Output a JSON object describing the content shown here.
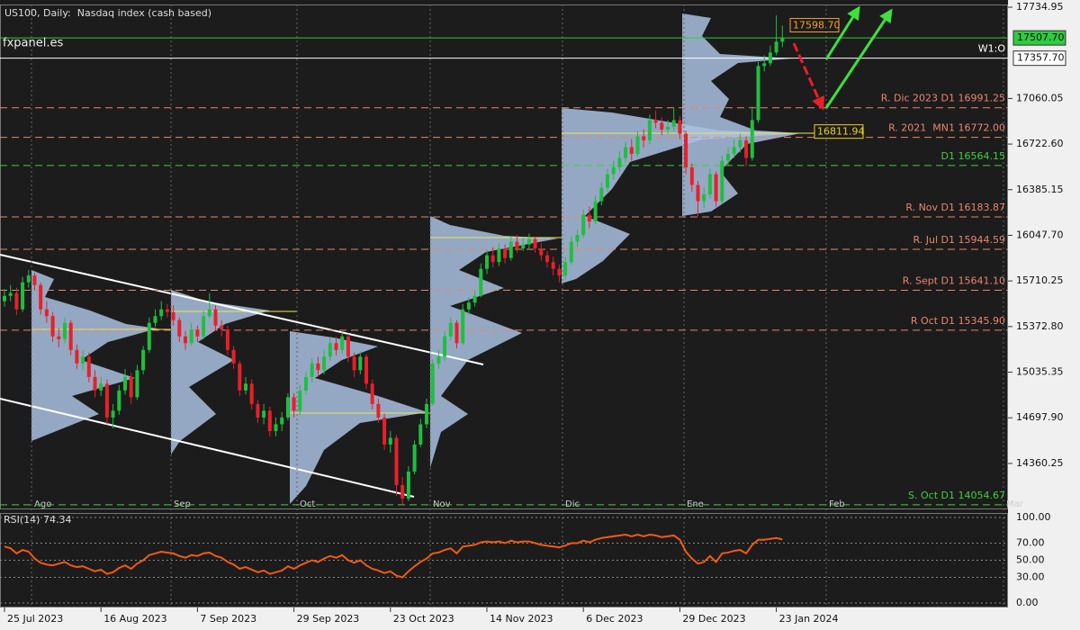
{
  "chart_data": {
    "type": "candlestick",
    "title": "US100, Daily:  Nasdaq index (cash based)",
    "watermark": "fxpanel.es",
    "up_color": "#1fbf3f",
    "down_color": "#e8202a",
    "ylim": [
      14027,
      17755
    ],
    "yticks": [
      17734.95,
      17060.05,
      {
        "value": 16722.6,
        "label": "16722.60"
      },
      16385.15,
      {
        "value": 16047.7,
        "label": "16047.70"
      },
      15710.25,
      {
        "value": 15372.8,
        "label": "15372.80"
      },
      15035.35,
      {
        "value": 14697.9,
        "label": "14697.90"
      },
      14360.25
    ],
    "xticks": [
      {
        "value": 0,
        "label": "25 Jul 2023"
      },
      {
        "value": 16,
        "label": "16 Aug 2023"
      },
      {
        "value": 32,
        "label": "7 Sep 2023"
      },
      {
        "value": 48,
        "label": "29 Sep 2023"
      },
      {
        "value": 64,
        "label": "23 Oct 2023"
      },
      {
        "value": 80,
        "label": "14 Nov 2023"
      },
      {
        "value": 96,
        "label": "6 Dec 2023"
      },
      {
        "value": 112,
        "label": "29 Dec 2023"
      },
      {
        "value": 128,
        "label": "23 Jan 2024"
      }
    ],
    "months": [
      "Ago",
      "Sep",
      "Oct",
      "Nov",
      "Dic",
      "Ene",
      "Feb",
      "Mar"
    ],
    "open": [
      15560,
      15600,
      15620,
      15500,
      15700,
      15750,
      15680,
      15500,
      15450,
      15300,
      15280,
      15400,
      15200,
      15100,
      15150,
      15000,
      14900,
      14950,
      14700,
      14750,
      14900,
      15000,
      14850,
      15050,
      15200,
      15400,
      15450,
      15500,
      15480,
      15420,
      15300,
      15250,
      15350,
      15300,
      15450,
      15500,
      15380,
      15350,
      15200,
      15100,
      14900,
      14950,
      14800,
      14700,
      14750,
      14600,
      14650,
      14700,
      14850,
      14750,
      14900,
      15000,
      15100,
      15050,
      15150,
      15250,
      15200,
      15300,
      15150,
      15050,
      15150,
      14950,
      14800,
      14700,
      14500,
      14550,
      14200,
      14100,
      14300,
      14500,
      14650,
      14800,
      15100,
      15150,
      15300,
      15400,
      15250,
      15500,
      15550,
      15600,
      15800,
      15900,
      15850,
      15950,
      15880,
      16000,
      15950,
      15980,
      16020,
      15950,
      15900,
      15850,
      15800,
      15750,
      15850,
      16000,
      16050,
      16200,
      16150,
      16300,
      16400,
      16500,
      16550,
      16620,
      16700,
      16650,
      16780,
      16750,
      16900,
      16880,
      16830,
      16850,
      16900,
      16800,
      16550,
      16420,
      16300,
      16350,
      16500,
      16300,
      16600,
      16650,
      16700,
      16750,
      16620,
      16900,
      17300,
      17320,
      17400,
      17480
    ],
    "high": [
      15650,
      15680,
      15660,
      15740,
      15790,
      15770,
      15700,
      15560,
      15480,
      15360,
      15440,
      15420,
      15240,
      15200,
      15180,
      15050,
      15000,
      14980,
      14800,
      14940,
      15060,
      15030,
      15090,
      15230,
      15440,
      15500,
      15560,
      15540,
      15530,
      15440,
      15340,
      15400,
      15380,
      15490,
      15620,
      15530,
      15420,
      15380,
      15230,
      15120,
      15000,
      14980,
      14830,
      14800,
      14780,
      14700,
      14740,
      14880,
      14880,
      14940,
      15040,
      15140,
      15150,
      15200,
      15290,
      15300,
      15330,
      15320,
      15180,
      15190,
      15170,
      14980,
      14840,
      14730,
      14600,
      14570,
      14260,
      14340,
      14530,
      14690,
      14840,
      15130,
      15200,
      15340,
      15440,
      15420,
      15540,
      15590,
      15640,
      15840,
      15940,
      15960,
      15990,
      15980,
      16040,
      16050,
      16030,
      16060,
      16040,
      15990,
      15930,
      15890,
      15830,
      15890,
      16040,
      16090,
      16240,
      16260,
      16340,
      16440,
      16540,
      16600,
      16670,
      16740,
      16760,
      16820,
      16830,
      16940,
      16970,
      16920,
      16900,
      16990,
      16930,
      16820,
      16580,
      16450,
      16400,
      16540,
      16520,
      16640,
      16700,
      16760,
      16800,
      16780,
      17000,
      17330,
      17380,
      17450,
      17675,
      17598.7
    ],
    "low": [
      15520,
      15560,
      15460,
      15480,
      15660,
      15640,
      15460,
      15400,
      15260,
      15220,
      15250,
      15160,
      15060,
      15050,
      14960,
      14850,
      14860,
      14650,
      14620,
      14720,
      14870,
      14800,
      14830,
      15020,
      15180,
      15370,
      15420,
      15440,
      15380,
      15260,
      15200,
      15230,
      15260,
      15280,
      15430,
      15340,
      15300,
      15160,
      15060,
      14860,
      14870,
      14760,
      14660,
      14650,
      14560,
      14560,
      14600,
      14680,
      14700,
      14720,
      14870,
      14960,
      15000,
      15020,
      15120,
      15160,
      15170,
      15110,
      15000,
      15020,
      14910,
      14760,
      14660,
      14460,
      14440,
      14120,
      14055,
      14080,
      14280,
      14480,
      14620,
      14790,
      15060,
      15120,
      15270,
      15210,
      15240,
      15460,
      15520,
      15590,
      15760,
      15810,
      15820,
      15840,
      15860,
      15920,
      15930,
      15950,
      15920,
      15860,
      15810,
      15750,
      15700,
      15720,
      15830,
      15960,
      16030,
      16100,
      16130,
      16270,
      16370,
      16460,
      16520,
      16590,
      16600,
      16630,
      16700,
      16720,
      16840,
      16790,
      16800,
      16820,
      16760,
      16500,
      16370,
      16190,
      16250,
      16320,
      16260,
      16280,
      16560,
      16620,
      16660,
      16560,
      16600,
      16880,
      17260,
      17300,
      17380,
      17440
    ],
    "close": [
      15600,
      15620,
      15500,
      15700,
      15750,
      15680,
      15500,
      15450,
      15300,
      15280,
      15400,
      15200,
      15100,
      15150,
      15000,
      14900,
      14950,
      14700,
      14750,
      14900,
      15000,
      14850,
      15050,
      15200,
      15400,
      15450,
      15500,
      15480,
      15420,
      15300,
      15250,
      15350,
      15300,
      15450,
      15500,
      15380,
      15350,
      15200,
      15100,
      14900,
      14950,
      14800,
      14700,
      14750,
      14600,
      14650,
      14700,
      14850,
      14750,
      14900,
      15000,
      15100,
      15050,
      15150,
      15250,
      15200,
      15300,
      15150,
      15050,
      15150,
      14950,
      14800,
      14700,
      14500,
      14550,
      14200,
      14100,
      14300,
      14500,
      14650,
      14800,
      15100,
      15150,
      15300,
      15400,
      15250,
      15500,
      15550,
      15600,
      15800,
      15900,
      15850,
      15950,
      15880,
      16000,
      15950,
      15980,
      16020,
      15950,
      15900,
      15850,
      15800,
      15750,
      15850,
      16000,
      16050,
      16200,
      16150,
      16300,
      16400,
      16500,
      16550,
      16620,
      16700,
      16650,
      16780,
      16750,
      16900,
      16880,
      16830,
      16850,
      16900,
      16800,
      16550,
      16420,
      16300,
      16350,
      16500,
      16300,
      16600,
      16650,
      16700,
      16750,
      16620,
      16900,
      17300,
      17320,
      17400,
      17480,
      17507.7
    ],
    "levels": [
      {
        "value": 17507.7,
        "color": "#2ecc40",
        "style": "solid",
        "price_label": "17507.70"
      },
      {
        "label": "W1:O",
        "value": 17357.7,
        "color": "#ffffff",
        "style": "solid",
        "price_label": "17357.70"
      },
      {
        "label": "R. Dic 2023 D1 16991.25",
        "value": 16991.25,
        "color": "#e8866a",
        "style": "dashed"
      },
      {
        "label": "R. 2021  MN1 16772.00",
        "value": 16772,
        "color": "#e8866a",
        "style": "dashed"
      },
      {
        "label": "D1 16564.15",
        "value": 16564.15,
        "color": "#3fcf3f",
        "style": "dashed"
      },
      {
        "label": "R. Nov D1 16183.87",
        "value": 16183.87,
        "color": "#e8866a",
        "style": "dashed"
      },
      {
        "label": "R. Jul D1 15944.59",
        "value": 15944.59,
        "color": "#e8866a",
        "style": "dashed"
      },
      {
        "label": "R. Sept D1 15641.10",
        "value": 15641.1,
        "color": "#e8866a",
        "style": "dashed"
      },
      {
        "label": "R Oct D1 15345.90",
        "value": 15345.9,
        "color": "#e8866a",
        "style": "dashed"
      },
      {
        "label": "S. Oct D1 14054.67",
        "value": 14054.67,
        "color": "#3fcf3f",
        "style": "dashed"
      }
    ],
    "callouts": [
      {
        "value": 17598.7,
        "label": "17598.70",
        "color": "#f0a030"
      },
      {
        "value": 16811.94,
        "label": "16811.94",
        "color": "#f0d020"
      }
    ],
    "rsi": {
      "title": "RSI(14) 74.34",
      "color": "#f05a14",
      "ylim": [
        0,
        100
      ],
      "yticks": [
        {
          "value": 100,
          "label": "100.00"
        },
        {
          "value": 70,
          "label": "70.00"
        },
        {
          "value": 50,
          "label": "50.00"
        },
        {
          "value": 30,
          "label": "30.00"
        },
        {
          "value": 0,
          "label": "0.00"
        }
      ],
      "values": [
        66,
        64,
        58,
        62,
        60,
        52,
        47,
        45,
        44,
        46,
        48,
        44,
        42,
        43,
        40,
        37,
        39,
        34,
        36,
        41,
        44,
        40,
        46,
        50,
        56,
        58,
        60,
        59,
        58,
        55,
        53,
        56,
        55,
        58,
        59,
        55,
        53,
        48,
        45,
        40,
        42,
        39,
        36,
        38,
        34,
        36,
        38,
        43,
        40,
        44,
        47,
        50,
        48,
        52,
        55,
        53,
        56,
        50,
        47,
        50,
        44,
        40,
        38,
        35,
        37,
        32,
        30,
        37,
        43,
        48,
        52,
        58,
        59,
        62,
        64,
        58,
        66,
        67,
        68,
        71,
        72,
        71,
        72,
        70,
        73,
        71,
        72,
        72,
        70,
        68,
        67,
        66,
        65,
        67,
        70,
        70,
        73,
        71,
        74,
        76,
        77,
        78,
        79,
        80,
        78,
        80,
        78,
        80,
        79,
        77,
        78,
        79,
        74,
        60,
        52,
        46,
        48,
        55,
        48,
        58,
        59,
        61,
        62,
        58,
        68,
        74,
        74,
        75,
        76,
        74.34
      ]
    }
  }
}
